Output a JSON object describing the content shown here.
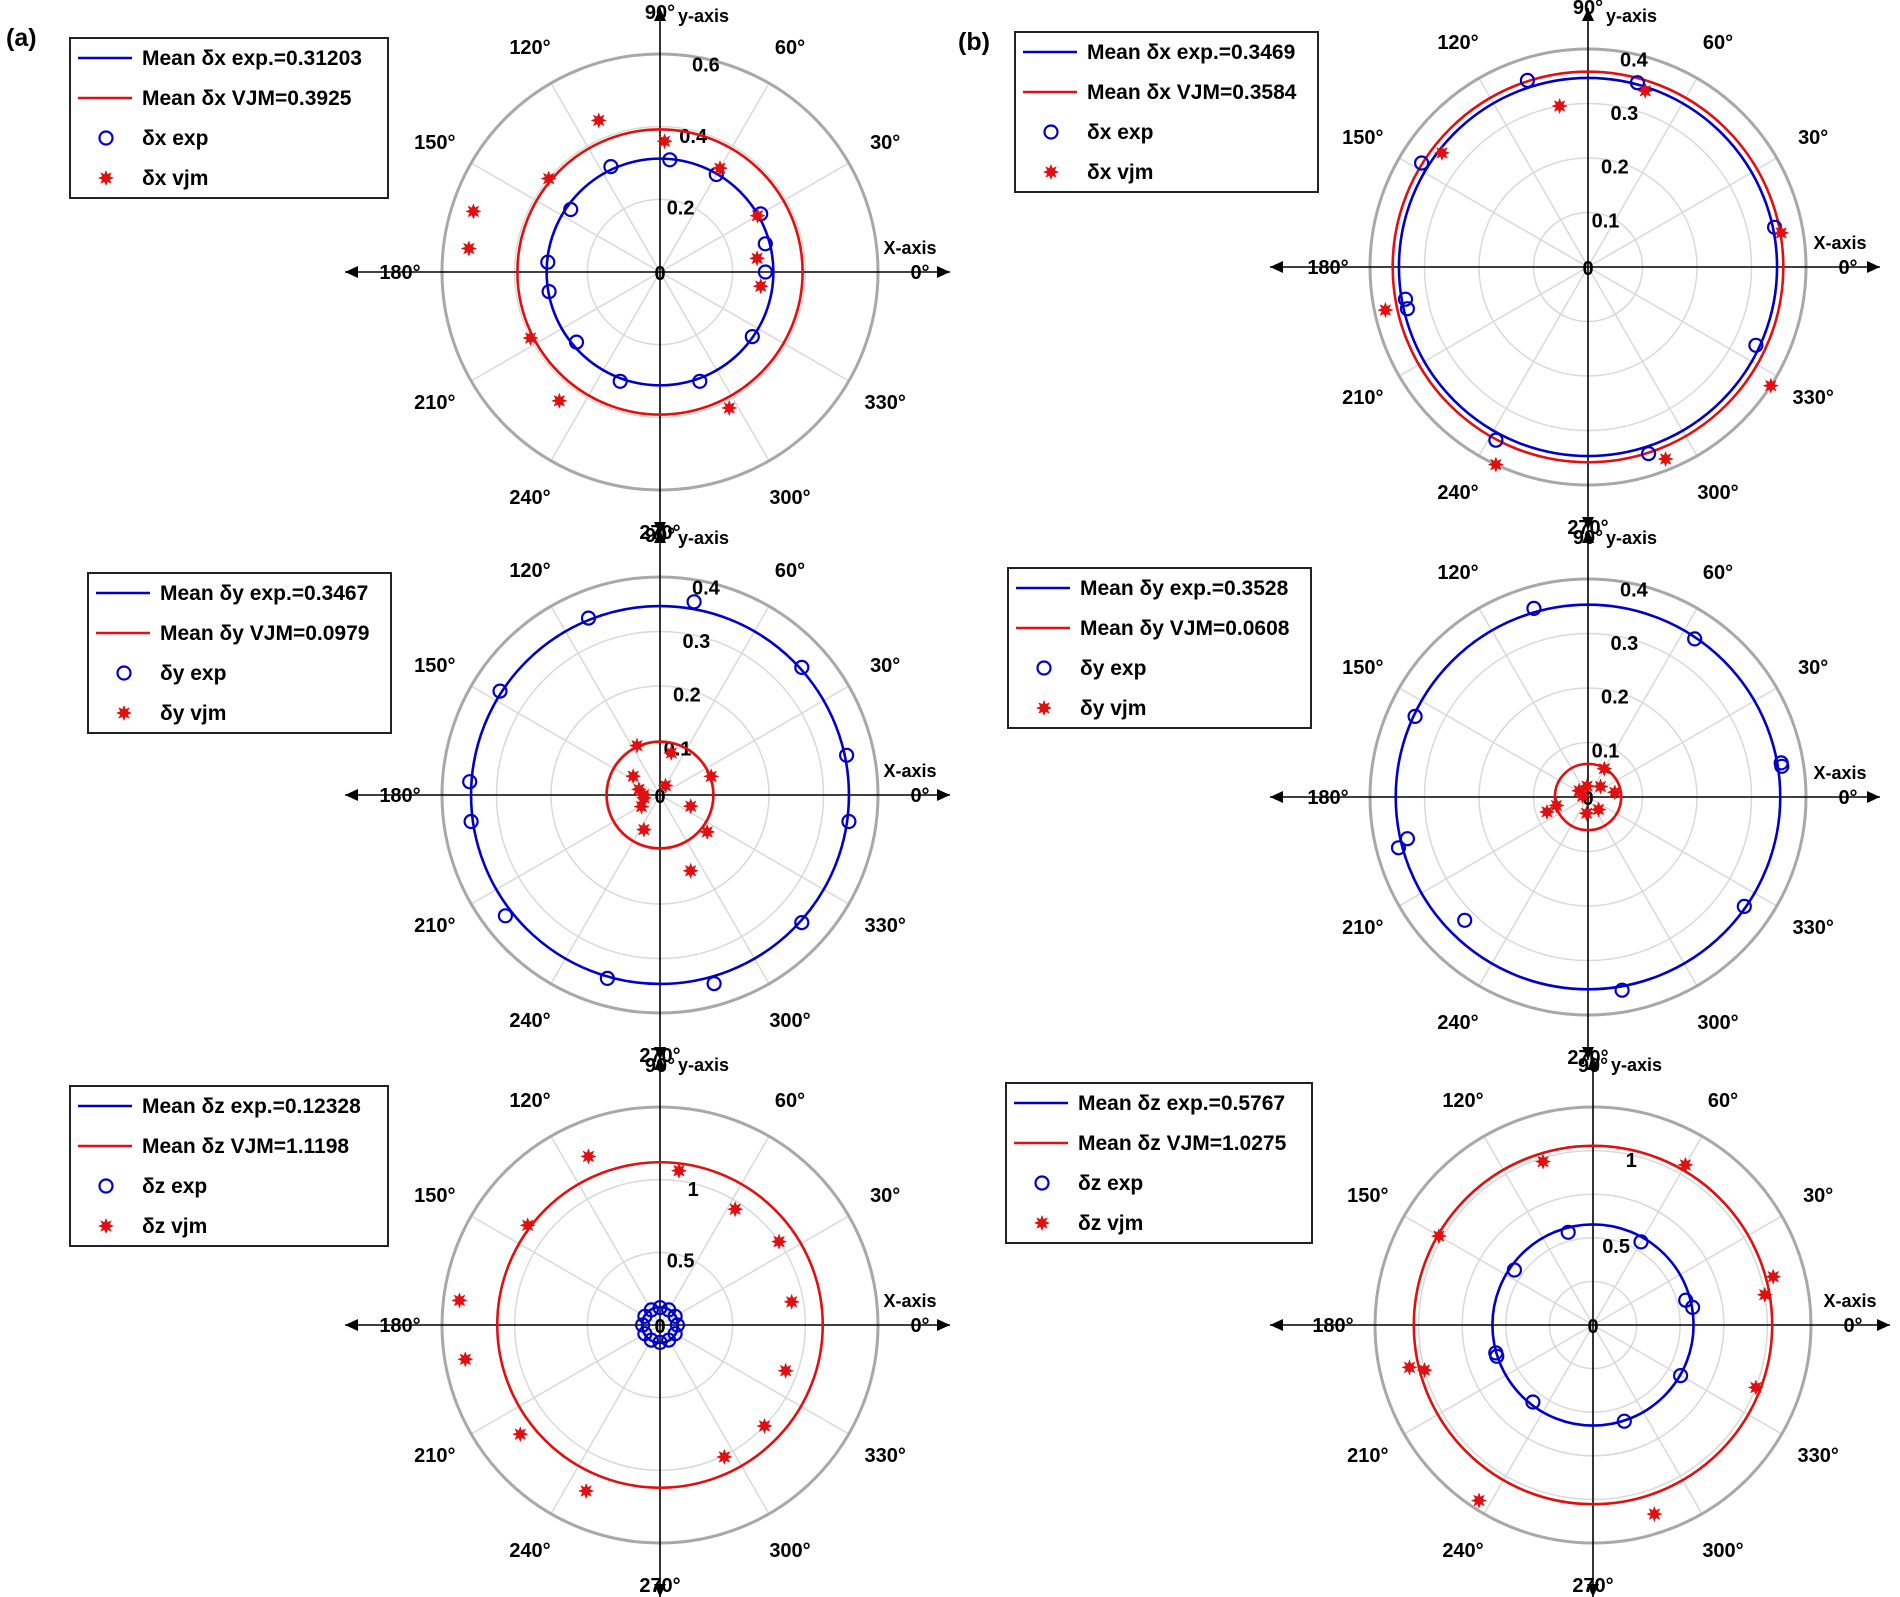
{
  "panel_labels": [
    "(a)",
    "(b)"
  ],
  "colors": {
    "exp": "#0000c8",
    "vjm": "#e01010",
    "grid": "#d9d9d9",
    "outer_ring": "#a8a8a8",
    "axis": "#000000"
  },
  "axis_labels": {
    "x": "X-axis",
    "y": "y-axis"
  },
  "angle_labels": [
    "0°",
    "30°",
    "60°",
    "90°",
    "120°",
    "150°",
    "180°",
    "210°",
    "240°",
    "270°",
    "300°",
    "330°"
  ],
  "chart_data": [
    {
      "type": "polar",
      "panel": "(a)",
      "rlim": [
        0,
        0.6
      ],
      "rticks": [
        0.2,
        0.4,
        0.6
      ],
      "rtick_labels": [
        "0.2",
        "0.4",
        "0.6"
      ],
      "legend": [
        "Mean δx exp.=0.31203",
        "Mean δx VJM=0.3925",
        "δx exp",
        "δx vjm"
      ],
      "series": [
        {
          "kind": "circle",
          "color_key": "exp",
          "value": 0.31203
        },
        {
          "kind": "circle",
          "color_key": "vjm",
          "value": 0.3925
        },
        {
          "kind": "points",
          "marker": "open-circle",
          "color_key": "exp",
          "points": [
            [
              0,
              0.29
            ],
            [
              30,
              0.32
            ],
            [
              60,
              0.31
            ],
            [
              85,
              0.31
            ],
            [
              115,
              0.32
            ],
            [
              145,
              0.3
            ],
            [
              175,
              0.31
            ],
            [
              190,
              0.31
            ],
            [
              220,
              0.3
            ],
            [
              250,
              0.32
            ],
            [
              290,
              0.32
            ],
            [
              325,
              0.31
            ],
            [
              15,
              0.3
            ]
          ]
        },
        {
          "kind": "points",
          "marker": "star",
          "color_key": "vjm",
          "points": [
            [
              352,
              0.28
            ],
            [
              8,
              0.27
            ],
            [
              30,
              0.31
            ],
            [
              60,
              0.33
            ],
            [
              88,
              0.36
            ],
            [
              112,
              0.45
            ],
            [
              140,
              0.4
            ],
            [
              162,
              0.54
            ],
            [
              173,
              0.53
            ],
            [
              207,
              0.4
            ],
            [
              232,
              0.45
            ],
            [
              297,
              0.42
            ]
          ]
        }
      ]
    },
    {
      "type": "polar",
      "panel": "(b)",
      "rlim": [
        0,
        0.4
      ],
      "rticks": [
        0.1,
        0.2,
        0.3,
        0.4
      ],
      "rtick_labels": [
        "0.1",
        "0.2",
        "0.3",
        "0.4"
      ],
      "legend": [
        "Mean δx exp.=0.3469",
        "Mean δx VJM=0.3584",
        "δx exp",
        "δx vjm"
      ],
      "series": [
        {
          "kind": "circle",
          "color_key": "exp",
          "value": 0.3469
        },
        {
          "kind": "circle",
          "color_key": "vjm",
          "value": 0.3584
        },
        {
          "kind": "points",
          "marker": "open-circle",
          "color_key": "exp",
          "points": [
            [
              12,
              0.35
            ],
            [
              75,
              0.35
            ],
            [
              108,
              0.36
            ],
            [
              148,
              0.36
            ],
            [
              190,
              0.34
            ],
            [
              193,
              0.34
            ],
            [
              242,
              0.36
            ],
            [
              288,
              0.36
            ],
            [
              335,
              0.34
            ]
          ]
        },
        {
          "kind": "points",
          "marker": "star",
          "color_key": "vjm",
          "points": [
            [
              10,
              0.36
            ],
            [
              72,
              0.34
            ],
            [
              100,
              0.3
            ],
            [
              142,
              0.34
            ],
            [
              192,
              0.38
            ],
            [
              245,
              0.4
            ],
            [
              292,
              0.38
            ],
            [
              327,
              0.4
            ]
          ]
        }
      ]
    },
    {
      "type": "polar",
      "panel": "(a)",
      "rlim": [
        0,
        0.4
      ],
      "rticks": [
        0.1,
        0.2,
        0.3,
        0.4
      ],
      "rtick_labels": [
        "0.1",
        "0.2",
        "0.3",
        "0.4"
      ],
      "legend": [
        "Mean δy exp.=0.3467",
        "Mean δy VJM=0.0979",
        "δy exp",
        "δy vjm"
      ],
      "series": [
        {
          "kind": "circle",
          "color_key": "exp",
          "value": 0.3467
        },
        {
          "kind": "circle",
          "color_key": "vjm",
          "value": 0.0979
        },
        {
          "kind": "points",
          "marker": "open-circle",
          "color_key": "exp",
          "points": [
            [
              352,
              0.35
            ],
            [
              12,
              0.35
            ],
            [
              42,
              0.35
            ],
            [
              80,
              0.36
            ],
            [
              112,
              0.35
            ],
            [
              147,
              0.35
            ],
            [
              176,
              0.35
            ],
            [
              188,
              0.35
            ],
            [
              218,
              0.36
            ],
            [
              254,
              0.35
            ],
            [
              286,
              0.36
            ],
            [
              318,
              0.35
            ]
          ]
        },
        {
          "kind": "points",
          "marker": "star",
          "color_key": "vjm",
          "points": [
            [
              20,
              0.1
            ],
            [
              75,
              0.08
            ],
            [
              115,
              0.1
            ],
            [
              145,
              0.06
            ],
            [
              165,
              0.04
            ],
            [
              180,
              0.03
            ],
            [
              190,
              0.03
            ],
            [
              212,
              0.04
            ],
            [
              245,
              0.07
            ],
            [
              292,
              0.15
            ],
            [
              322,
              0.11
            ],
            [
              340,
              0.06
            ],
            [
              60,
              0.02
            ]
          ]
        }
      ]
    },
    {
      "type": "polar",
      "panel": "(b)",
      "rlim": [
        0,
        0.4
      ],
      "rticks": [
        0.1,
        0.2,
        0.3,
        0.4
      ],
      "rtick_labels": [
        "0.1",
        "0.2",
        "0.3",
        "0.4"
      ],
      "legend": [
        "Mean δy exp.=0.3528",
        "Mean δy VJM=0.0608",
        "δy exp",
        "δy vjm"
      ],
      "series": [
        {
          "kind": "circle",
          "color_key": "exp",
          "value": 0.3528
        },
        {
          "kind": "circle",
          "color_key": "vjm",
          "value": 0.0608
        },
        {
          "kind": "points",
          "marker": "open-circle",
          "color_key": "exp",
          "points": [
            [
              10,
              0.36
            ],
            [
              56,
              0.35
            ],
            [
              106,
              0.36
            ],
            [
              155,
              0.35
            ],
            [
              193,
              0.34
            ],
            [
              195,
              0.36
            ],
            [
              225,
              0.32
            ],
            [
              280,
              0.36
            ],
            [
              325,
              0.35
            ],
            [
              9,
              0.36
            ]
          ]
        },
        {
          "kind": "points",
          "marker": "star",
          "color_key": "vjm",
          "points": [
            [
              10,
              0.05
            ],
            [
              40,
              0.03
            ],
            [
              95,
              0.02
            ],
            [
              145,
              0.02
            ],
            [
              170,
              0.01
            ],
            [
              195,
              0.06
            ],
            [
              200,
              0.08
            ],
            [
              265,
              0.03
            ],
            [
              310,
              0.03
            ],
            [
              60,
              0.06
            ]
          ]
        }
      ]
    },
    {
      "type": "polar",
      "panel": "(a)",
      "rlim": [
        0,
        1.5
      ],
      "rticks": [
        0.5,
        1.0,
        1.5
      ],
      "rtick_labels": [
        "0.5",
        "1",
        ""
      ],
      "legend": [
        "Mean δz exp.=0.12328",
        "Mean δz VJM=1.1198",
        "δz exp",
        "δz vjm"
      ],
      "series": [
        {
          "kind": "circle",
          "color_key": "exp",
          "value": 0.12328
        },
        {
          "kind": "circle",
          "color_key": "vjm",
          "value": 1.1198
        },
        {
          "kind": "points",
          "marker": "open-circle",
          "color_key": "exp",
          "points": [
            [
              0,
              0.12
            ],
            [
              30,
              0.12
            ],
            [
              60,
              0.12
            ],
            [
              90,
              0.12
            ],
            [
              120,
              0.12
            ],
            [
              150,
              0.12
            ],
            [
              180,
              0.12
            ],
            [
              210,
              0.12
            ],
            [
              240,
              0.12
            ],
            [
              270,
              0.12
            ],
            [
              300,
              0.12
            ],
            [
              330,
              0.12
            ]
          ]
        },
        {
          "kind": "points",
          "marker": "star",
          "color_key": "vjm",
          "points": [
            [
              10,
              0.92
            ],
            [
              340,
              0.92
            ],
            [
              35,
              1.0
            ],
            [
              57,
              0.95
            ],
            [
              83,
              1.07
            ],
            [
              113,
              1.26
            ],
            [
              143,
              1.14
            ],
            [
              173,
              1.39
            ],
            [
              190,
              1.36
            ],
            [
              218,
              1.22
            ],
            [
              246,
              1.25
            ],
            [
              296,
              1.01
            ],
            [
              316,
              1.0
            ]
          ]
        }
      ]
    },
    {
      "type": "polar",
      "panel": "(b)",
      "rlim": [
        0,
        1.25
      ],
      "rticks": [
        0.25,
        0.5,
        0.75,
        1.0,
        1.25
      ],
      "rtick_labels": [
        "",
        "0.5",
        "",
        "1",
        ""
      ],
      "legend": [
        "Mean δz exp.=0.5767",
        "Mean δz VJM=1.0275",
        "δz exp",
        "δz vjm"
      ],
      "series": [
        {
          "kind": "circle",
          "color_key": "exp",
          "value": 0.5767
        },
        {
          "kind": "circle",
          "color_key": "vjm",
          "value": 1.0275
        },
        {
          "kind": "points",
          "marker": "open-circle",
          "color_key": "exp",
          "points": [
            [
              15,
              0.55
            ],
            [
              60,
              0.55
            ],
            [
              105,
              0.55
            ],
            [
              145,
              0.55
            ],
            [
              196,
              0.58
            ],
            [
              198,
              0.58
            ],
            [
              232,
              0.56
            ],
            [
              288,
              0.58
            ],
            [
              330,
              0.58
            ],
            [
              10,
              0.58
            ]
          ]
        },
        {
          "kind": "points",
          "marker": "star",
          "color_key": "vjm",
          "points": [
            [
              15,
              1.07
            ],
            [
              60,
              1.06
            ],
            [
              107,
              0.98
            ],
            [
              150,
              1.02
            ],
            [
              193,
              1.08
            ],
            [
              195,
              1.0
            ],
            [
              237,
              1.2
            ],
            [
              288,
              1.14
            ],
            [
              339,
              1.0
            ],
            [
              10,
              1.0
            ]
          ]
        }
      ]
    }
  ]
}
